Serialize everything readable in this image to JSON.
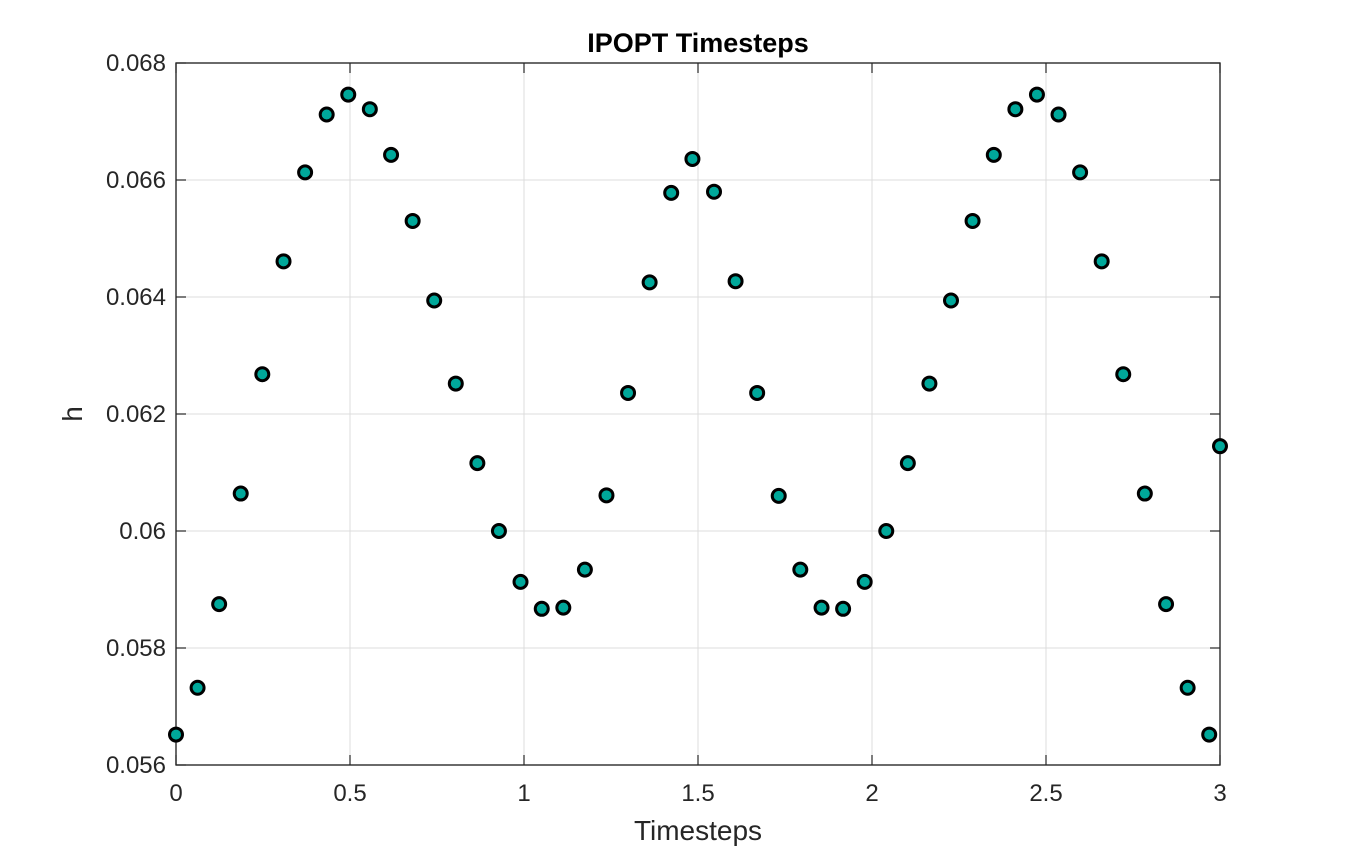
{
  "chart_data": {
    "type": "scatter",
    "title": "IPOPT Timesteps",
    "xlabel": "Timesteps",
    "ylabel": "h",
    "xlim": [
      0,
      3.0
    ],
    "ylim": [
      0.056,
      0.068
    ],
    "xticks": [
      0,
      0.5,
      1,
      1.5,
      2,
      2.5,
      3
    ],
    "xtick_labels": [
      "0",
      "0.5",
      "1",
      "1.5",
      "2",
      "2.5",
      "3"
    ],
    "yticks": [
      0.056,
      0.058,
      0.06,
      0.062,
      0.064,
      0.066,
      0.068
    ],
    "ytick_labels": [
      "0.056",
      "0.058",
      "0.06",
      "0.062",
      "0.064",
      "0.066",
      "0.068"
    ],
    "grid": true,
    "marker_face_color": "#00a89a",
    "marker_edge_color": "#000000",
    "series": [
      {
        "x": [
          0,
          0.062,
          0.124,
          0.186,
          0.248,
          0.309,
          0.371,
          0.433,
          0.495,
          0.557,
          0.618,
          0.68,
          0.742,
          0.804,
          0.866,
          0.928,
          0.99,
          1.051,
          1.113,
          1.175,
          1.237,
          1.299,
          1.361,
          1.423,
          1.484,
          1.546,
          1.608,
          1.67,
          1.732,
          1.794,
          1.855,
          1.917,
          1.979,
          2.041,
          2.103,
          2.165,
          2.227,
          2.289,
          2.35,
          2.412,
          2.474,
          2.536,
          2.598,
          2.66,
          2.722,
          2.784,
          2.845,
          2.907,
          2.969,
          3.031
        ],
        "y": [
          0.05652,
          0.05732,
          0.05875,
          0.06064,
          0.06268,
          0.06461,
          0.06613,
          0.06712,
          0.06746,
          0.06721,
          0.06643,
          0.0653,
          0.06394,
          0.06252,
          0.06116,
          0.06,
          0.05913,
          0.05867,
          0.05869,
          0.05934,
          0.06061,
          0.06236,
          0.06425,
          0.06578,
          0.06636,
          0.0658,
          0.06427,
          0.06236,
          0.0606,
          0.05934,
          0.05869,
          0.05867,
          0.05913,
          0.06,
          0.06116,
          0.06252,
          0.06394,
          0.0653,
          0.06643,
          0.06721,
          0.06746,
          0.06712,
          0.06613,
          0.06461,
          0.06268,
          0.06064,
          0.05875,
          0.05732,
          0.05652,
          0.06145
        ]
      }
    ]
  }
}
